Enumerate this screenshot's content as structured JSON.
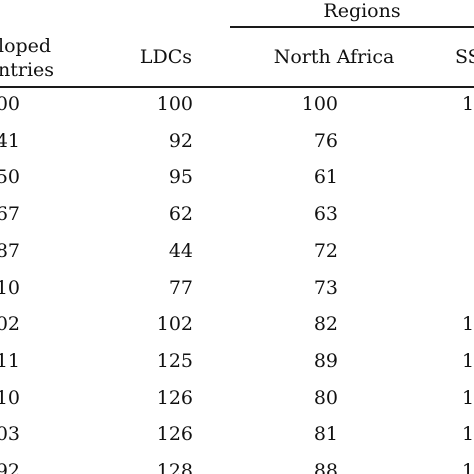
{
  "table": {
    "group_header": "Regions",
    "columns": [
      {
        "key": "developed",
        "label_line1": "loped",
        "label_line2": "ntries"
      },
      {
        "key": "ldcs",
        "label": "LDCs"
      },
      {
        "key": "north_africa",
        "label": "North Africa"
      },
      {
        "key": "ssa",
        "label": "SS"
      }
    ],
    "rows": [
      {
        "developed": "00",
        "ldcs": "100",
        "north_africa": "100",
        "ssa": "1"
      },
      {
        "developed": "41",
        "ldcs": "92",
        "north_africa": "76",
        "ssa": ""
      },
      {
        "developed": "50",
        "ldcs": "95",
        "north_africa": "61",
        "ssa": ""
      },
      {
        "developed": "67",
        "ldcs": "62",
        "north_africa": "63",
        "ssa": ""
      },
      {
        "developed": "87",
        "ldcs": "44",
        "north_africa": "72",
        "ssa": ""
      },
      {
        "developed": "10",
        "ldcs": "77",
        "north_africa": "73",
        "ssa": ""
      },
      {
        "developed": "02",
        "ldcs": "102",
        "north_africa": "82",
        "ssa": "1"
      },
      {
        "developed": "11",
        "ldcs": "125",
        "north_africa": "89",
        "ssa": "1"
      },
      {
        "developed": "10",
        "ldcs": "126",
        "north_africa": "80",
        "ssa": "1"
      },
      {
        "developed": "03",
        "ldcs": "126",
        "north_africa": "81",
        "ssa": "1"
      },
      {
        "developed": "92",
        "ldcs": "128",
        "north_africa": "88",
        "ssa": "1"
      }
    ]
  }
}
